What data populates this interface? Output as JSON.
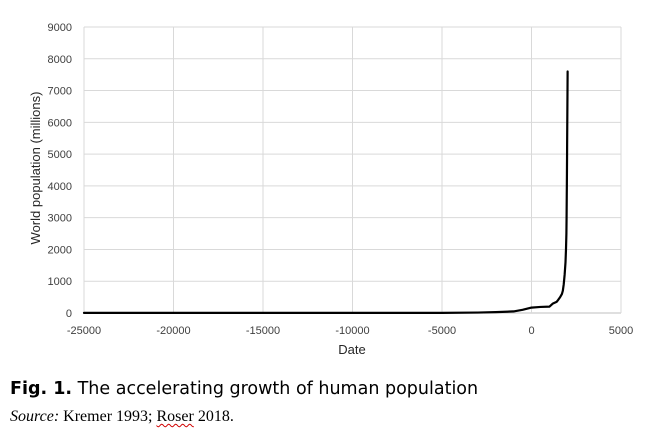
{
  "chart_data": {
    "type": "line",
    "title": "",
    "xlabel": "Date",
    "ylabel": "World population (millions)",
    "xlim": [
      -25000,
      5000
    ],
    "ylim": [
      0,
      9000
    ],
    "xticks": [
      "-25000",
      "-20000",
      "-15000",
      "-10000",
      "-5000",
      "0",
      "5000"
    ],
    "yticks": [
      "0",
      "1000",
      "2000",
      "3000",
      "4000",
      "5000",
      "6000",
      "7000",
      "8000",
      "9000"
    ],
    "grid": true,
    "legend": "none",
    "line_color": "#000000",
    "series": [
      {
        "x": [
          -25000,
          -10000,
          -5000,
          -3000,
          -2000,
          -1000,
          -500,
          0,
          500,
          1000,
          1200,
          1400,
          1500,
          1600,
          1700,
          1750,
          1800,
          1850,
          1900,
          1927,
          1950,
          1960,
          1970,
          1975,
          1980,
          1987,
          1990,
          1999,
          2000,
          2010,
          2018
        ],
        "y": [
          3,
          4,
          5,
          14,
          27,
          50,
          100,
          170,
          190,
          200,
          300,
          350,
          420,
          500,
          600,
          700,
          900,
          1200,
          1600,
          2000,
          2500,
          3000,
          3700,
          4000,
          4400,
          5000,
          5300,
          6000,
          6100,
          6900,
          7600
        ]
      }
    ]
  },
  "caption": {
    "label": "Fig. 1.",
    "text": " The accelerating growth of human population"
  },
  "source": {
    "label": "Source:",
    "text_before": " Kremer 1993; ",
    "flagged_word": "Roser",
    "text_after": " 2018."
  }
}
